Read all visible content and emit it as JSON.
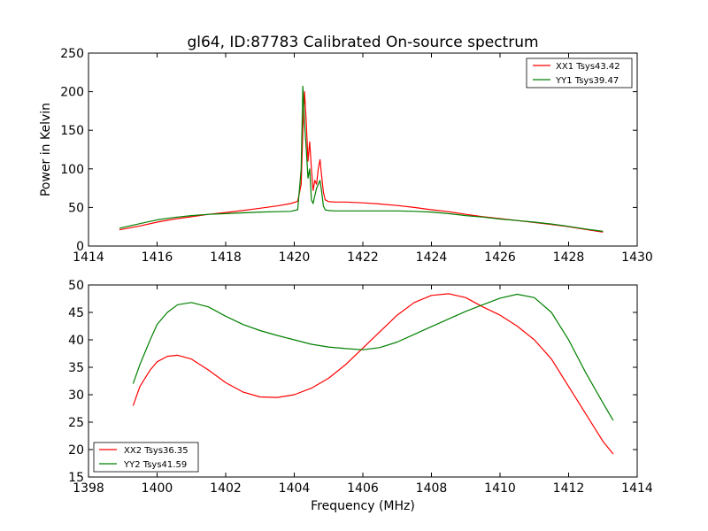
{
  "chart_data": [
    {
      "type": "line",
      "title": "gl64, ID:87783 Calibrated On-source spectrum",
      "xlabel": "",
      "ylabel": "Power in Kelvin",
      "xlim": [
        1414,
        1430
      ],
      "ylim": [
        0,
        250
      ],
      "xticks": [
        "1414",
        "1416",
        "1418",
        "1420",
        "1422",
        "1424",
        "1426",
        "1428",
        "1430"
      ],
      "yticks": [
        "0",
        "50",
        "100",
        "150",
        "200",
        "250"
      ],
      "grid": false,
      "legend_position": "top-right",
      "series": [
        {
          "name": "XX1 Tsys43.42",
          "color": "#ff0000",
          "x": [
            1414.9,
            1415.5,
            1416.0,
            1416.5,
            1417.0,
            1417.5,
            1418.0,
            1418.5,
            1419.0,
            1419.5,
            1419.9,
            1420.1,
            1420.2,
            1420.25,
            1420.3,
            1420.35,
            1420.4,
            1420.45,
            1420.5,
            1420.55,
            1420.6,
            1420.65,
            1420.7,
            1420.75,
            1420.8,
            1420.85,
            1420.9,
            1421.0,
            1421.2,
            1421.5,
            1422.0,
            1422.5,
            1423.0,
            1423.5,
            1424.0,
            1424.5,
            1425.0,
            1425.5,
            1426.0,
            1426.5,
            1427.0,
            1427.5,
            1428.0,
            1428.5,
            1429.0
          ],
          "y": [
            21,
            26,
            31,
            35,
            38,
            41,
            43.5,
            46,
            49,
            52,
            55,
            58,
            80,
            150,
            200,
            160,
            110,
            135,
            100,
            72,
            85,
            80,
            100,
            112,
            90,
            70,
            60,
            57.5,
            57,
            57,
            56,
            54.5,
            52.5,
            50,
            47,
            44.5,
            41,
            38,
            35.5,
            33,
            30.5,
            28,
            25,
            21.5,
            18
          ]
        },
        {
          "name": "YY1 Tsys39.47",
          "color": "#008000",
          "x": [
            1414.9,
            1415.5,
            1416.0,
            1416.5,
            1417.0,
            1417.5,
            1418.0,
            1418.5,
            1419.0,
            1419.5,
            1419.9,
            1420.1,
            1420.2,
            1420.25,
            1420.3,
            1420.35,
            1420.4,
            1420.45,
            1420.5,
            1420.55,
            1420.6,
            1420.65,
            1420.7,
            1420.75,
            1420.8,
            1420.85,
            1420.9,
            1421.0,
            1421.2,
            1421.5,
            1422.0,
            1422.5,
            1423.0,
            1423.5,
            1424.0,
            1424.5,
            1425.0,
            1425.5,
            1426.0,
            1426.5,
            1427.0,
            1427.5,
            1428.0,
            1428.5,
            1429.0
          ],
          "y": [
            23,
            29,
            34,
            37,
            39.5,
            41,
            42,
            43,
            44,
            44.5,
            45,
            47,
            100,
            207,
            160,
            125,
            88,
            100,
            60,
            55,
            65,
            75,
            80,
            85,
            70,
            52,
            47,
            46,
            45.5,
            45.5,
            45.5,
            45.5,
            45.5,
            45,
            44,
            42,
            39.5,
            37.5,
            35,
            33,
            31,
            28.5,
            25.5,
            22,
            19
          ]
        }
      ]
    },
    {
      "type": "line",
      "title": "",
      "xlabel": "Frequency (MHz)",
      "ylabel": "",
      "xlim": [
        1398,
        1414
      ],
      "ylim": [
        15,
        50
      ],
      "xticks": [
        "1398",
        "1400",
        "1402",
        "1404",
        "1406",
        "1408",
        "1410",
        "1412",
        "1414"
      ],
      "yticks": [
        "15",
        "20",
        "25",
        "30",
        "35",
        "40",
        "45",
        "50"
      ],
      "grid": false,
      "legend_position": "bottom-left",
      "series": [
        {
          "name": "XX2 Tsys36.35",
          "color": "#ff0000",
          "x": [
            1399.3,
            1399.5,
            1399.8,
            1400.0,
            1400.3,
            1400.6,
            1401.0,
            1401.5,
            1402.0,
            1402.5,
            1403.0,
            1403.5,
            1404.0,
            1404.5,
            1405.0,
            1405.5,
            1406.0,
            1406.5,
            1407.0,
            1407.5,
            1408.0,
            1408.5,
            1409.0,
            1409.5,
            1410.0,
            1410.5,
            1411.0,
            1411.5,
            1412.0,
            1412.5,
            1413.0,
            1413.3
          ],
          "y": [
            28,
            31.5,
            34.5,
            36,
            37,
            37.2,
            36.5,
            34.5,
            32.2,
            30.5,
            29.6,
            29.5,
            30,
            31.2,
            33,
            35.5,
            38.5,
            41.5,
            44.5,
            46.8,
            48.1,
            48.4,
            47.7,
            46,
            44.5,
            42.5,
            40,
            36.5,
            31.5,
            26.5,
            21.5,
            19.2
          ]
        },
        {
          "name": "YY2 Tsys41.59",
          "color": "#008000",
          "x": [
            1399.3,
            1399.5,
            1399.8,
            1400.0,
            1400.3,
            1400.6,
            1401.0,
            1401.5,
            1402.0,
            1402.5,
            1403.0,
            1403.5,
            1404.0,
            1404.5,
            1405.0,
            1405.5,
            1406.0,
            1406.5,
            1407.0,
            1407.5,
            1408.0,
            1408.5,
            1409.0,
            1409.5,
            1410.0,
            1410.5,
            1411.0,
            1411.5,
            1412.0,
            1412.5,
            1413.0,
            1413.3
          ],
          "y": [
            32,
            35.5,
            40,
            42.8,
            45,
            46.4,
            46.8,
            46,
            44.3,
            42.8,
            41.7,
            40.8,
            40,
            39.2,
            38.7,
            38.4,
            38.2,
            38.6,
            39.6,
            41,
            42.4,
            43.8,
            45.2,
            46.4,
            47.6,
            48.3,
            47.7,
            45,
            40,
            34,
            28.5,
            25.3
          ]
        }
      ]
    }
  ]
}
